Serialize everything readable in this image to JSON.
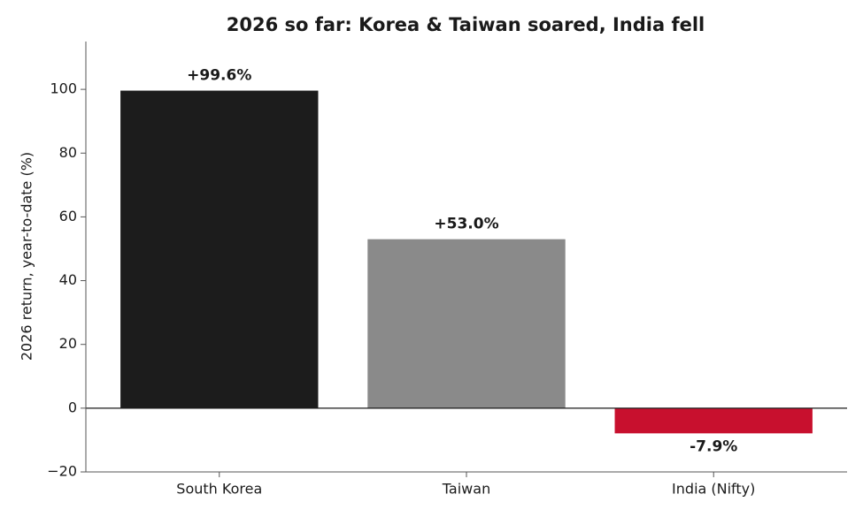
{
  "chart_data": {
    "type": "bar",
    "title": "2026 so far: Korea & Taiwan soared, India fell",
    "y_label": "2026 return, year-to-date (%)",
    "categories": [
      "South Korea",
      "Taiwan",
      "India (Nifty)"
    ],
    "values": [
      99.6,
      53.0,
      -7.9
    ],
    "value_labels": [
      "+99.6%",
      "+53.0%",
      "-7.9%"
    ],
    "colors": [
      "#1c1c1c",
      "#8a8a8a",
      "#c8102e"
    ],
    "ylim": [
      -20,
      115
    ],
    "yticks": [
      {
        "value": -20,
        "label": "−20"
      },
      0,
      20,
      40,
      60,
      80,
      100
    ],
    "grid": false
  }
}
